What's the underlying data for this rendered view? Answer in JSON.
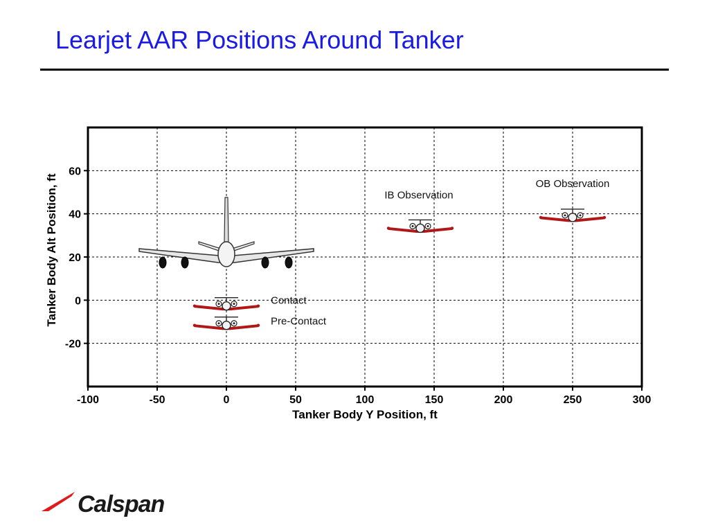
{
  "slide": {
    "title": "Learjet AAR Positions Around Tanker"
  },
  "colors": {
    "title": "#1a1ae6",
    "learjet_wing": "#b01818",
    "logo_accent": "#e01a1a"
  },
  "chart_data": {
    "type": "scatter",
    "title": "",
    "xlabel": "Tanker Body Y Position, ft",
    "ylabel": "Tanker Body Alt Position, ft",
    "xlim": [
      -100,
      300
    ],
    "ylim": [
      -40,
      80
    ],
    "xticks": [
      -100,
      -50,
      0,
      50,
      100,
      150,
      200,
      250,
      300
    ],
    "yticks": [
      -20,
      0,
      20,
      40,
      60
    ],
    "grid": true,
    "tanker": {
      "name": "Tanker",
      "x": 0,
      "y": 20,
      "icon": "tanker-aircraft-icon"
    },
    "points": [
      {
        "label": "Contact",
        "x": 0,
        "y": -3,
        "icon": "learjet-icon"
      },
      {
        "label": "Pre-Contact",
        "x": 0,
        "y": -12,
        "icon": "learjet-icon"
      },
      {
        "label": "IB Observation",
        "x": 140,
        "y": 33,
        "icon": "learjet-icon"
      },
      {
        "label": "OB Observation",
        "x": 250,
        "y": 38,
        "icon": "learjet-icon"
      }
    ]
  },
  "logo": {
    "text": "Calspan",
    "icon": "calspan-swoosh-icon"
  }
}
